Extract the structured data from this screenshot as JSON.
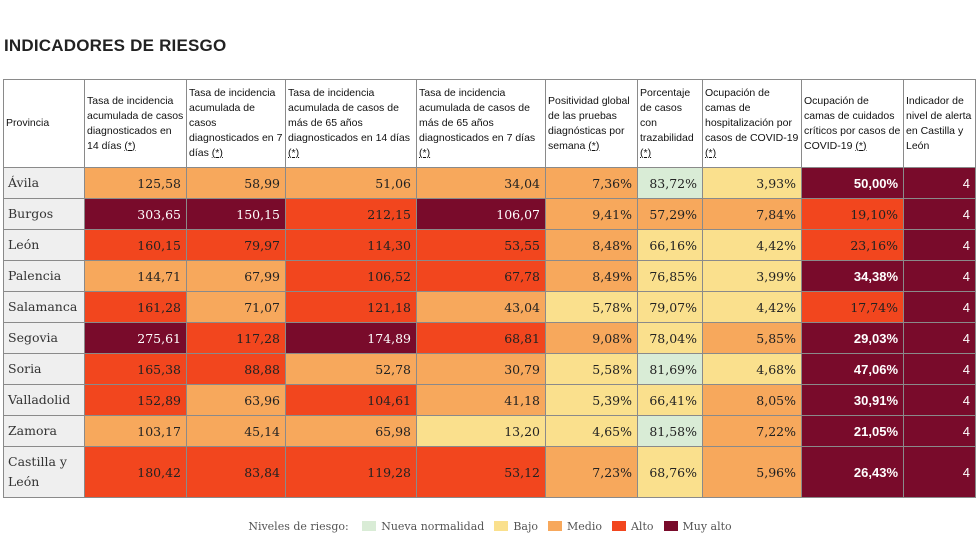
{
  "page": {
    "title": "INDICADORES DE RIESGO"
  },
  "colors": {
    "nueva": "#d9ecd6",
    "bajo": "#fae08d",
    "medio": "#f7a85c",
    "alto": "#f2461e",
    "muyalto": "#790b2b"
  },
  "table": {
    "headers": [
      {
        "text": "Provincia",
        "ast": ""
      },
      {
        "text": "Tasa de incidencia acumulada de casos diagnosticados en 14 días ",
        "ast": "(*)"
      },
      {
        "text": "Tasa de incidencia acumulada de casos diagnosticados en 7 días ",
        "ast": "(*)"
      },
      {
        "text": "Tasa de incidencia acumulada de casos de más de 65 años diagnosticados en 14 días ",
        "ast": "(*)"
      },
      {
        "text": "Tasa de incidencia acumulada de casos de más de 65 años diagnosticados en 7 días ",
        "ast": "(*)"
      },
      {
        "text": "Positividad global de las pruebas diagnósticas por semana ",
        "ast": "(*)"
      },
      {
        "text": "Porcentaje de casos con trazabilidad ",
        "ast": "(*)"
      },
      {
        "text": "Ocupación de camas de hospitalización por casos de COVID-19 ",
        "ast": "(*)"
      },
      {
        "text": "Ocupación de camas de cuidados críticos por casos de COVID-19 ",
        "ast": "(*)"
      },
      {
        "text": "Indicador de nivel de alerta en Castilla y León",
        "ast": ""
      }
    ],
    "rows": [
      {
        "provincia": "Ávila",
        "cells": [
          {
            "v": "125,58",
            "lvl": "medio"
          },
          {
            "v": "58,99",
            "lvl": "medio"
          },
          {
            "v": "51,06",
            "lvl": "medio"
          },
          {
            "v": "34,04",
            "lvl": "medio"
          },
          {
            "v": "7,36%",
            "lvl": "medio"
          },
          {
            "v": "83,72%",
            "lvl": "nueva"
          },
          {
            "v": "3,93%",
            "lvl": "bajo"
          },
          {
            "v": "50,00%",
            "lvl": "muyalto"
          },
          {
            "v": "4",
            "lvl": "muyalto"
          }
        ]
      },
      {
        "provincia": "Burgos",
        "cells": [
          {
            "v": "303,65",
            "lvl": "muyalto"
          },
          {
            "v": "150,15",
            "lvl": "muyalto"
          },
          {
            "v": "212,15",
            "lvl": "alto"
          },
          {
            "v": "106,07",
            "lvl": "muyalto"
          },
          {
            "v": "9,41%",
            "lvl": "medio"
          },
          {
            "v": "57,29%",
            "lvl": "medio"
          },
          {
            "v": "7,84%",
            "lvl": "medio"
          },
          {
            "v": "19,10%",
            "lvl": "alto"
          },
          {
            "v": "4",
            "lvl": "muyalto"
          }
        ]
      },
      {
        "provincia": "León",
        "cells": [
          {
            "v": "160,15",
            "lvl": "alto"
          },
          {
            "v": "79,97",
            "lvl": "alto"
          },
          {
            "v": "114,30",
            "lvl": "alto"
          },
          {
            "v": "53,55",
            "lvl": "alto"
          },
          {
            "v": "8,48%",
            "lvl": "medio"
          },
          {
            "v": "66,16%",
            "lvl": "bajo"
          },
          {
            "v": "4,42%",
            "lvl": "bajo"
          },
          {
            "v": "23,16%",
            "lvl": "alto"
          },
          {
            "v": "4",
            "lvl": "muyalto"
          }
        ]
      },
      {
        "provincia": "Palencia",
        "cells": [
          {
            "v": "144,71",
            "lvl": "medio"
          },
          {
            "v": "67,99",
            "lvl": "medio"
          },
          {
            "v": "106,52",
            "lvl": "alto"
          },
          {
            "v": "67,78",
            "lvl": "alto"
          },
          {
            "v": "8,49%",
            "lvl": "medio"
          },
          {
            "v": "76,85%",
            "lvl": "bajo"
          },
          {
            "v": "3,99%",
            "lvl": "bajo"
          },
          {
            "v": "34,38%",
            "lvl": "muyalto"
          },
          {
            "v": "4",
            "lvl": "muyalto"
          }
        ]
      },
      {
        "provincia": "Salamanca",
        "cells": [
          {
            "v": "161,28",
            "lvl": "alto"
          },
          {
            "v": "71,07",
            "lvl": "medio"
          },
          {
            "v": "121,18",
            "lvl": "alto"
          },
          {
            "v": "43,04",
            "lvl": "medio"
          },
          {
            "v": "5,78%",
            "lvl": "bajo"
          },
          {
            "v": "79,07%",
            "lvl": "bajo"
          },
          {
            "v": "4,42%",
            "lvl": "bajo"
          },
          {
            "v": "17,74%",
            "lvl": "alto"
          },
          {
            "v": "4",
            "lvl": "muyalto"
          }
        ]
      },
      {
        "provincia": "Segovia",
        "cells": [
          {
            "v": "275,61",
            "lvl": "muyalto"
          },
          {
            "v": "117,28",
            "lvl": "alto"
          },
          {
            "v": "174,89",
            "lvl": "muyalto"
          },
          {
            "v": "68,81",
            "lvl": "alto"
          },
          {
            "v": "9,08%",
            "lvl": "medio"
          },
          {
            "v": "78,04%",
            "lvl": "bajo"
          },
          {
            "v": "5,85%",
            "lvl": "medio"
          },
          {
            "v": "29,03%",
            "lvl": "muyalto"
          },
          {
            "v": "4",
            "lvl": "muyalto"
          }
        ]
      },
      {
        "provincia": "Soria",
        "cells": [
          {
            "v": "165,38",
            "lvl": "alto"
          },
          {
            "v": "88,88",
            "lvl": "alto"
          },
          {
            "v": "52,78",
            "lvl": "medio"
          },
          {
            "v": "30,79",
            "lvl": "medio"
          },
          {
            "v": "5,58%",
            "lvl": "bajo"
          },
          {
            "v": "81,69%",
            "lvl": "nueva"
          },
          {
            "v": "4,68%",
            "lvl": "bajo"
          },
          {
            "v": "47,06%",
            "lvl": "muyalto"
          },
          {
            "v": "4",
            "lvl": "muyalto"
          }
        ]
      },
      {
        "provincia": "Valladolid",
        "cells": [
          {
            "v": "152,89",
            "lvl": "alto"
          },
          {
            "v": "63,96",
            "lvl": "medio"
          },
          {
            "v": "104,61",
            "lvl": "alto"
          },
          {
            "v": "41,18",
            "lvl": "medio"
          },
          {
            "v": "5,39%",
            "lvl": "bajo"
          },
          {
            "v": "66,41%",
            "lvl": "bajo"
          },
          {
            "v": "8,05%",
            "lvl": "medio"
          },
          {
            "v": "30,91%",
            "lvl": "muyalto"
          },
          {
            "v": "4",
            "lvl": "muyalto"
          }
        ]
      },
      {
        "provincia": "Zamora",
        "cells": [
          {
            "v": "103,17",
            "lvl": "medio"
          },
          {
            "v": "45,14",
            "lvl": "medio"
          },
          {
            "v": "65,98",
            "lvl": "medio"
          },
          {
            "v": "13,20",
            "lvl": "bajo"
          },
          {
            "v": "4,65%",
            "lvl": "bajo"
          },
          {
            "v": "81,58%",
            "lvl": "nueva"
          },
          {
            "v": "7,22%",
            "lvl": "medio"
          },
          {
            "v": "21,05%",
            "lvl": "muyalto"
          },
          {
            "v": "4",
            "lvl": "muyalto"
          }
        ]
      },
      {
        "provincia": "Castilla y León",
        "cells": [
          {
            "v": "180,42",
            "lvl": "alto"
          },
          {
            "v": "83,84",
            "lvl": "alto"
          },
          {
            "v": "119,28",
            "lvl": "alto"
          },
          {
            "v": "53,12",
            "lvl": "alto"
          },
          {
            "v": "7,23%",
            "lvl": "medio"
          },
          {
            "v": "68,76%",
            "lvl": "bajo"
          },
          {
            "v": "5,96%",
            "lvl": "medio"
          },
          {
            "v": "26,43%",
            "lvl": "muyalto"
          },
          {
            "v": "4",
            "lvl": "muyalto"
          }
        ]
      }
    ]
  },
  "legend": {
    "label": "Niveles de riesgo:",
    "items": [
      {
        "key": "nueva",
        "label": "Nueva normalidad"
      },
      {
        "key": "bajo",
        "label": "Bajo"
      },
      {
        "key": "medio",
        "label": "Medio"
      },
      {
        "key": "alto",
        "label": "Alto"
      },
      {
        "key": "muyalto",
        "label": "Muy alto"
      }
    ]
  }
}
